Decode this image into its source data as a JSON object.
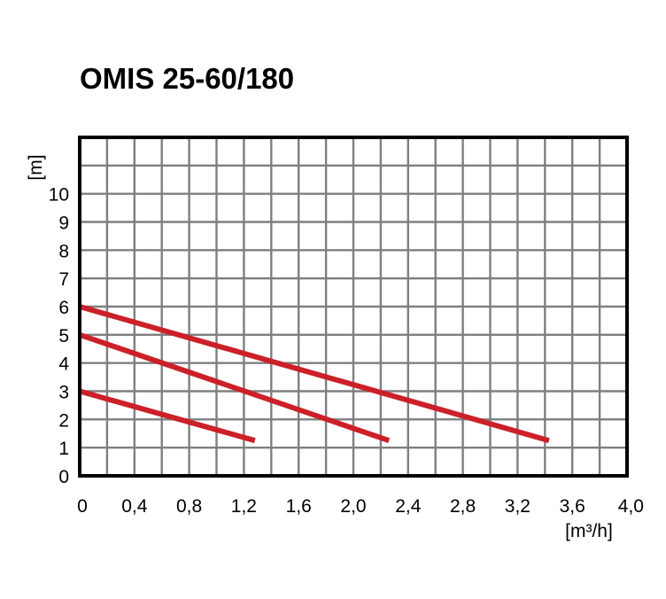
{
  "chart_data": {
    "type": "line",
    "title": "OMIS 25-60/180",
    "xlabel": "[m³/h]",
    "ylabel": "[m]",
    "xlim": [
      0,
      4.0
    ],
    "ylim": [
      0,
      12
    ],
    "x_ticks": [
      "0",
      "0,4",
      "0,8",
      "1,2",
      "1,6",
      "2,0",
      "2,4",
      "2,8",
      "3,2",
      "3,6",
      "4,0"
    ],
    "y_ticks": [
      "0",
      "1",
      "2",
      "3",
      "4",
      "5",
      "6",
      "7",
      "8",
      "9",
      "10"
    ],
    "grid": true,
    "series": [
      {
        "x": [
          0,
          3.43
        ],
        "y": [
          6.0,
          1.25
        ]
      },
      {
        "x": [
          0,
          2.26
        ],
        "y": [
          5.0,
          1.25
        ]
      },
      {
        "x": [
          0,
          1.28
        ],
        "y": [
          3.0,
          1.25
        ]
      }
    ],
    "colors": {
      "line": "#cc2029",
      "grid": "#7f7f7f",
      "frame": "#000000"
    }
  }
}
